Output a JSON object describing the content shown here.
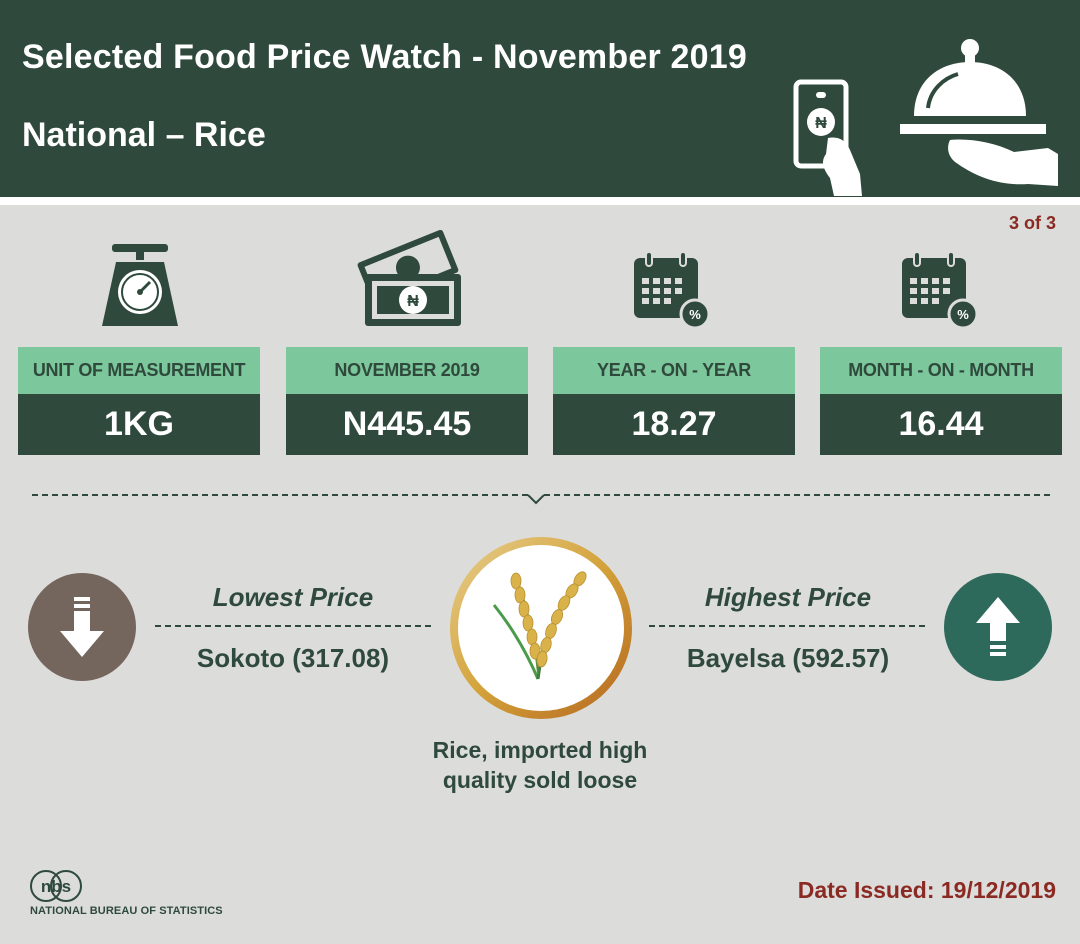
{
  "header": {
    "title": "Selected Food Price Watch - November 2019",
    "subtitle": "National – Rice"
  },
  "page_indicator": "3 of 3",
  "stats": [
    {
      "label": "UNIT OF MEASUREMENT",
      "value": "1KG",
      "icon": "weighing-scale-icon"
    },
    {
      "label": "NOVEMBER 2019",
      "value": "N445.45",
      "icon": "naira-banknotes-icon"
    },
    {
      "label": "YEAR - ON - YEAR",
      "value": "18.27",
      "icon": "calendar-percent-icon"
    },
    {
      "label": "MONTH - ON - MONTH",
      "value": "16.44",
      "icon": "calendar-percent-icon"
    }
  ],
  "lowest": {
    "heading": "Lowest Price",
    "value": "Sokoto (317.08)",
    "icon": "arrow-down-icon"
  },
  "highest": {
    "heading": "Highest Price",
    "value": "Bayelsa (592.57)",
    "icon": "arrow-up-icon"
  },
  "item": {
    "line1": "Rice, imported high",
    "line2": "quality sold loose",
    "icon": "rice-stalk-icon"
  },
  "footer": {
    "logo_text": "nbs",
    "org_name": "NATIONAL BUREAU OF STATISTICS",
    "date_issued": "Date Issued: 19/12/2019"
  },
  "colors": {
    "header_bg": "#2f4a3d",
    "label_bg": "#7cc79b",
    "accent_red": "#8b2a23",
    "background": "#dcdcda"
  }
}
